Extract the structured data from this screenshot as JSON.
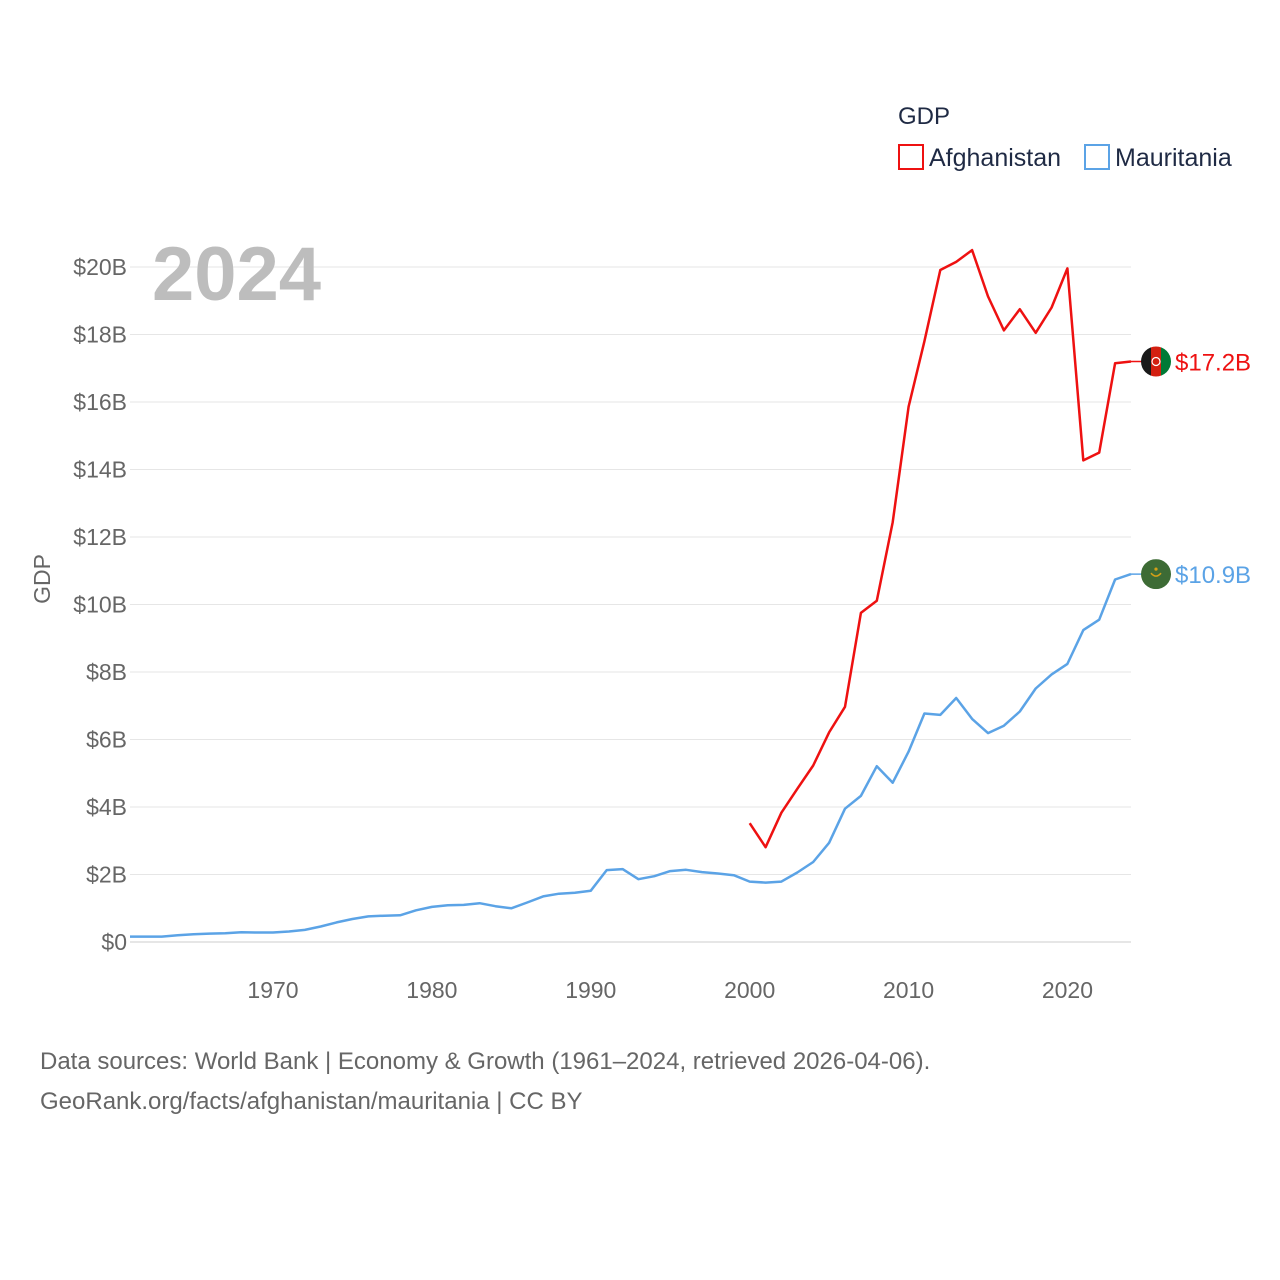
{
  "chart_data": {
    "type": "line",
    "year_label": "2024",
    "legend_title": "GDP",
    "ylabel": "GDP",
    "xlabel": "",
    "xlim": [
      1961,
      2024
    ],
    "ylim": [
      0,
      21
    ],
    "x_ticks": [
      1970,
      1980,
      1990,
      2000,
      2010,
      2020
    ],
    "y_ticks": [
      0,
      2,
      4,
      6,
      8,
      10,
      12,
      14,
      16,
      18,
      20
    ],
    "y_tick_labels": [
      "$0",
      "$2B",
      "$4B",
      "$6B",
      "$8B",
      "$10B",
      "$12B",
      "$14B",
      "$16B",
      "$18B",
      "$20B"
    ],
    "series": [
      {
        "name": "Afghanistan",
        "color": "#ee1111",
        "end_label": "$17.2B",
        "flag_icon": "afghanistan-flag-icon",
        "flag_colors": [
          "#1a1a1a",
          "#d32011",
          "#007a36"
        ],
        "x": [
          2000,
          2001,
          2002,
          2003,
          2004,
          2005,
          2006,
          2007,
          2008,
          2009,
          2010,
          2011,
          2012,
          2013,
          2014,
          2015,
          2016,
          2017,
          2018,
          2019,
          2020,
          2021,
          2022,
          2023,
          2024
        ],
        "values": [
          3.52,
          2.81,
          3.83,
          4.54,
          5.23,
          6.21,
          6.97,
          9.75,
          10.11,
          12.44,
          15.86,
          17.8,
          19.91,
          20.15,
          20.5,
          19.13,
          18.12,
          18.75,
          18.05,
          18.8,
          19.96,
          14.27,
          14.5,
          17.15,
          17.2
        ]
      },
      {
        "name": "Mauritania",
        "color": "#5ba3e6",
        "end_label": "$10.9B",
        "flag_icon": "mauritania-flag-icon",
        "flag_colors": [
          "#3d6b35",
          "#d4a017"
        ],
        "x": [
          1961,
          1962,
          1963,
          1964,
          1965,
          1966,
          1967,
          1968,
          1969,
          1970,
          1971,
          1972,
          1973,
          1974,
          1975,
          1976,
          1977,
          1978,
          1979,
          1980,
          1981,
          1982,
          1983,
          1984,
          1985,
          1986,
          1987,
          1988,
          1989,
          1990,
          1991,
          1992,
          1993,
          1994,
          1995,
          1996,
          1997,
          1998,
          1999,
          2000,
          2001,
          2002,
          2003,
          2004,
          2005,
          2006,
          2007,
          2008,
          2009,
          2010,
          2011,
          2012,
          2013,
          2014,
          2015,
          2016,
          2017,
          2018,
          2019,
          2020,
          2021,
          2022,
          2023,
          2024
        ],
        "values": [
          0.16,
          0.16,
          0.16,
          0.2,
          0.23,
          0.25,
          0.26,
          0.29,
          0.28,
          0.28,
          0.31,
          0.36,
          0.46,
          0.58,
          0.68,
          0.76,
          0.78,
          0.79,
          0.94,
          1.04,
          1.09,
          1.1,
          1.15,
          1.06,
          1.0,
          1.17,
          1.35,
          1.43,
          1.46,
          1.52,
          2.13,
          2.16,
          1.86,
          1.95,
          2.1,
          2.14,
          2.07,
          2.03,
          1.98,
          1.79,
          1.76,
          1.79,
          2.06,
          2.37,
          2.94,
          3.95,
          4.33,
          5.21,
          4.72,
          5.64,
          6.77,
          6.73,
          7.23,
          6.61,
          6.19,
          6.41,
          6.83,
          7.51,
          7.93,
          8.24,
          9.24,
          9.55,
          10.74,
          10.9
        ]
      }
    ]
  },
  "footer": {
    "source_line1": "Data sources: World Bank | Economy & Growth (1961–2024, retrieved 2026-04-06).",
    "source_line2": "GeoRank.org/facts/afghanistan/mauritania | CC BY"
  }
}
